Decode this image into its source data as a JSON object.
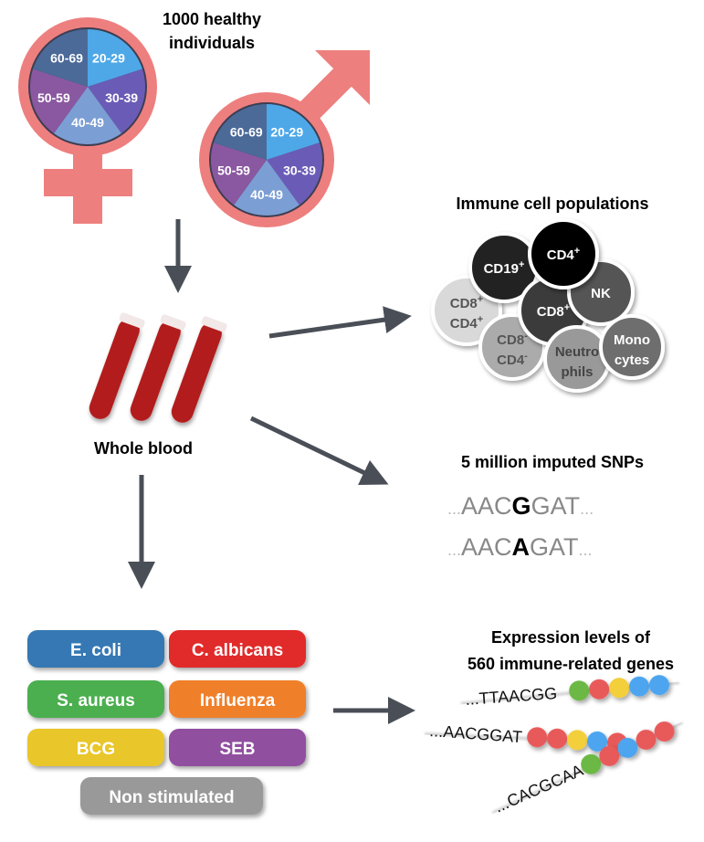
{
  "cohort": {
    "title_line1": "1000 healthy",
    "title_line2": "individuals",
    "age_groups": [
      {
        "label": "20-29",
        "color": "#4ea8e8"
      },
      {
        "label": "30-39",
        "color": "#6a5cb6"
      },
      {
        "label": "40-49",
        "color": "#7b9ed4"
      },
      {
        "label": "50-59",
        "color": "#8a58a0"
      },
      {
        "label": "60-69",
        "color": "#4b6a98"
      }
    ],
    "symbol_color": "#ee7f7f"
  },
  "sample": {
    "label": "Whole blood"
  },
  "immune_cells": {
    "title": "Immune cell populations",
    "cells": [
      {
        "l1": "CD19",
        "s1": "+",
        "color": "#222222",
        "text": "#ffffff"
      },
      {
        "l1": "CD4",
        "s1": "+",
        "color": "#000000",
        "text": "#ffffff"
      },
      {
        "l1": "NK",
        "color": "#555555",
        "text": "#ffffff"
      },
      {
        "l1": "CD8",
        "s1": "+",
        "color": "#3a3a3a",
        "text": "#ffffff"
      },
      {
        "l1": "CD8",
        "s1": "+",
        "l2": "CD4",
        "s2": "+",
        "color": "#d9d9d9",
        "text": "#555555"
      },
      {
        "l1": "CD8",
        "s1": "-",
        "l2": "CD4",
        "s2": "-",
        "color": "#ababab",
        "text": "#555555"
      },
      {
        "l1": "Neutro",
        "l2": "phils",
        "color": "#999999",
        "text": "#444444"
      },
      {
        "l1": "Mono",
        "l2": "cytes",
        "color": "#6e6e6e",
        "text": "#ffffff"
      }
    ]
  },
  "snps": {
    "title": "5 million imputed SNPs",
    "seq1": {
      "pre": "...",
      "a": "AAC",
      "snp": "G",
      "b": "GAT",
      "post": "..."
    },
    "seq2": {
      "pre": "...",
      "a": "AAC",
      "snp": "A",
      "b": "GAT",
      "post": "..."
    }
  },
  "stimuli": [
    {
      "label": "E. coli",
      "color": "#3478b4"
    },
    {
      "label": "C. albicans",
      "color": "#e12a2a"
    },
    {
      "label": "S. aureus",
      "color": "#4caf50"
    },
    {
      "label": "Influenza",
      "color": "#f07f2a"
    },
    {
      "label": "BCG",
      "color": "#e9c62b"
    },
    {
      "label": "SEB",
      "color": "#9150a0"
    },
    {
      "label": "Non stimulated",
      "color": "#999999"
    }
  ],
  "expression": {
    "title_line1": "Expression levels of",
    "title_line2": "560 immune-related genes",
    "strands": [
      "...TTAACGG",
      "...AACGGAT",
      "...CACGCAA"
    ]
  },
  "colors": {
    "arrow": "#4a4f57"
  }
}
